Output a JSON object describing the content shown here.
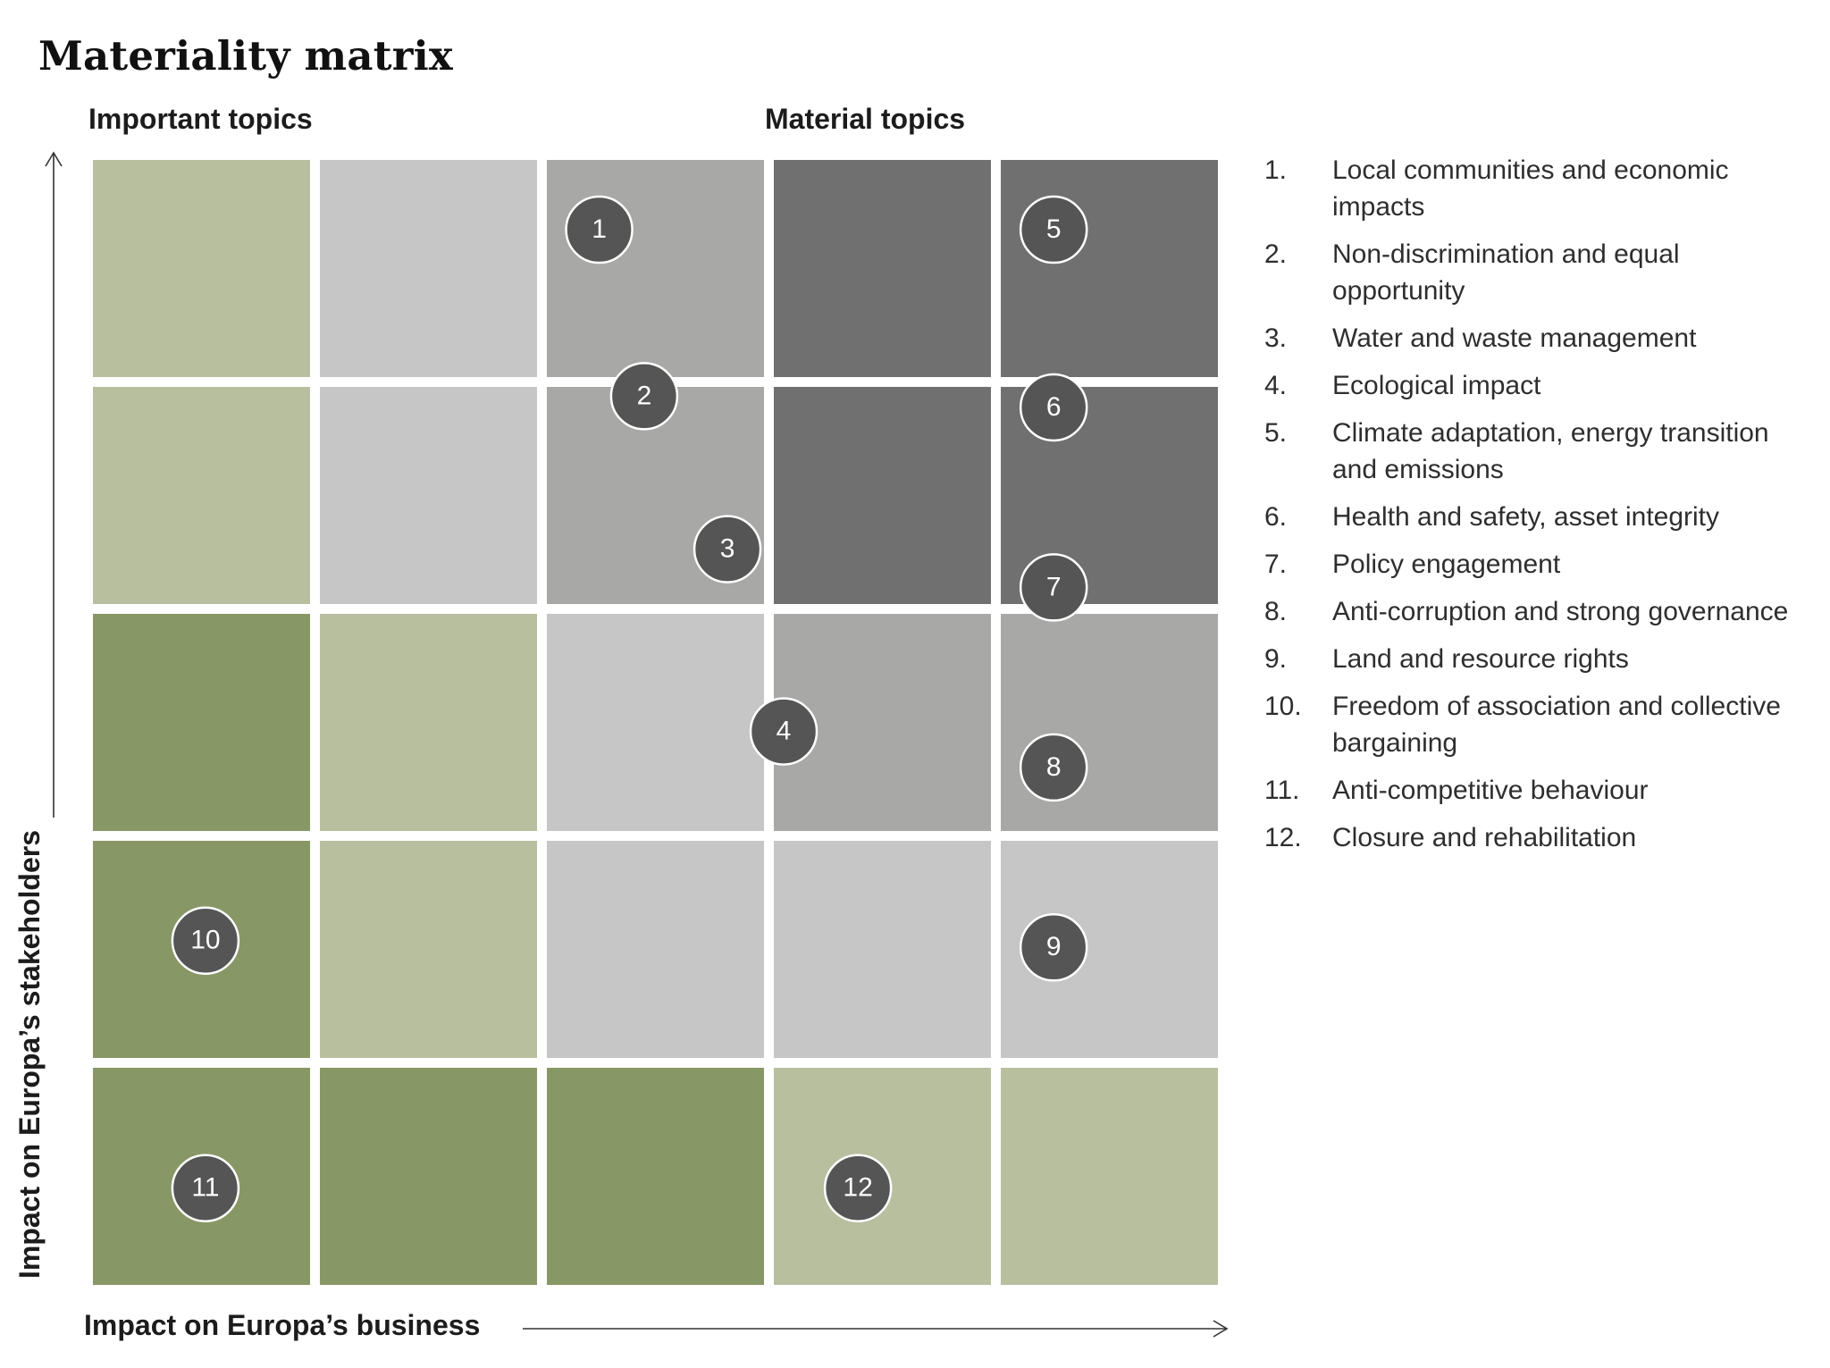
{
  "chart_data": {
    "type": "heatmap",
    "title": "Materiality matrix",
    "zone_labels": {
      "important": "Important topics",
      "material": "Material topics"
    },
    "xlabel": "Impact on Europa’s business",
    "ylabel": "Impact on Europa’s stakeholders",
    "grid": {
      "columns": 5,
      "rows": 5
    },
    "xlim": [
      0,
      5
    ],
    "ylim": [
      0,
      5
    ],
    "palette": {
      "dark_green": "#889766",
      "light_green": "#b8bf9f",
      "light_grey": "#c6c6c6",
      "mid_grey": "#a8a8a7",
      "dark_grey": "#707070",
      "bubble": "#555555",
      "axis": "#333333"
    },
    "cells_top_to_bottom": [
      [
        "light_green",
        "light_grey",
        "mid_grey",
        "dark_grey",
        "dark_grey"
      ],
      [
        "light_green",
        "light_grey",
        "mid_grey",
        "dark_grey",
        "dark_grey"
      ],
      [
        "dark_green",
        "light_green",
        "light_grey",
        "mid_grey",
        "mid_grey"
      ],
      [
        "dark_green",
        "light_green",
        "light_grey",
        "light_grey",
        "light_grey"
      ],
      [
        "dark_green",
        "dark_green",
        "dark_green",
        "light_green",
        "light_green"
      ]
    ],
    "topics": [
      {
        "id": "1",
        "x": 2.25,
        "y": 4.69
      },
      {
        "id": "2",
        "x": 2.45,
        "y": 3.95
      },
      {
        "id": "3",
        "x": 2.82,
        "y": 3.27
      },
      {
        "id": "4",
        "x": 3.07,
        "y": 2.46
      },
      {
        "id": "5",
        "x": 4.27,
        "y": 4.69
      },
      {
        "id": "6",
        "x": 4.27,
        "y": 3.9
      },
      {
        "id": "7",
        "x": 4.27,
        "y": 3.1
      },
      {
        "id": "8",
        "x": 4.27,
        "y": 2.3
      },
      {
        "id": "9",
        "x": 4.27,
        "y": 1.5
      },
      {
        "id": "10",
        "x": 0.5,
        "y": 1.53
      },
      {
        "id": "11",
        "x": 0.5,
        "y": 0.43
      },
      {
        "id": "12",
        "x": 3.4,
        "y": 0.43
      }
    ]
  },
  "legend": [
    {
      "num": "1.",
      "label": "Local communities and economic impacts"
    },
    {
      "num": "2.",
      "label": "Non-discrimination and equal opportunity"
    },
    {
      "num": "3.",
      "label": "Water and waste management"
    },
    {
      "num": "4.",
      "label": "Ecological impact"
    },
    {
      "num": "5.",
      "label": "Climate adaptation, energy transition and emissions"
    },
    {
      "num": "6.",
      "label": "Health and safety, asset integrity"
    },
    {
      "num": "7.",
      "label": "Policy engagement"
    },
    {
      "num": "8.",
      "label": "Anti-corruption and strong governance"
    },
    {
      "num": "9.",
      "label": "Land and resource rights"
    },
    {
      "num": "10.",
      "label": "Freedom of association and collective bargaining"
    },
    {
      "num": "11.",
      "label": "Anti-competitive behaviour"
    },
    {
      "num": "12.",
      "label": "Closure and rehabilitation"
    }
  ]
}
